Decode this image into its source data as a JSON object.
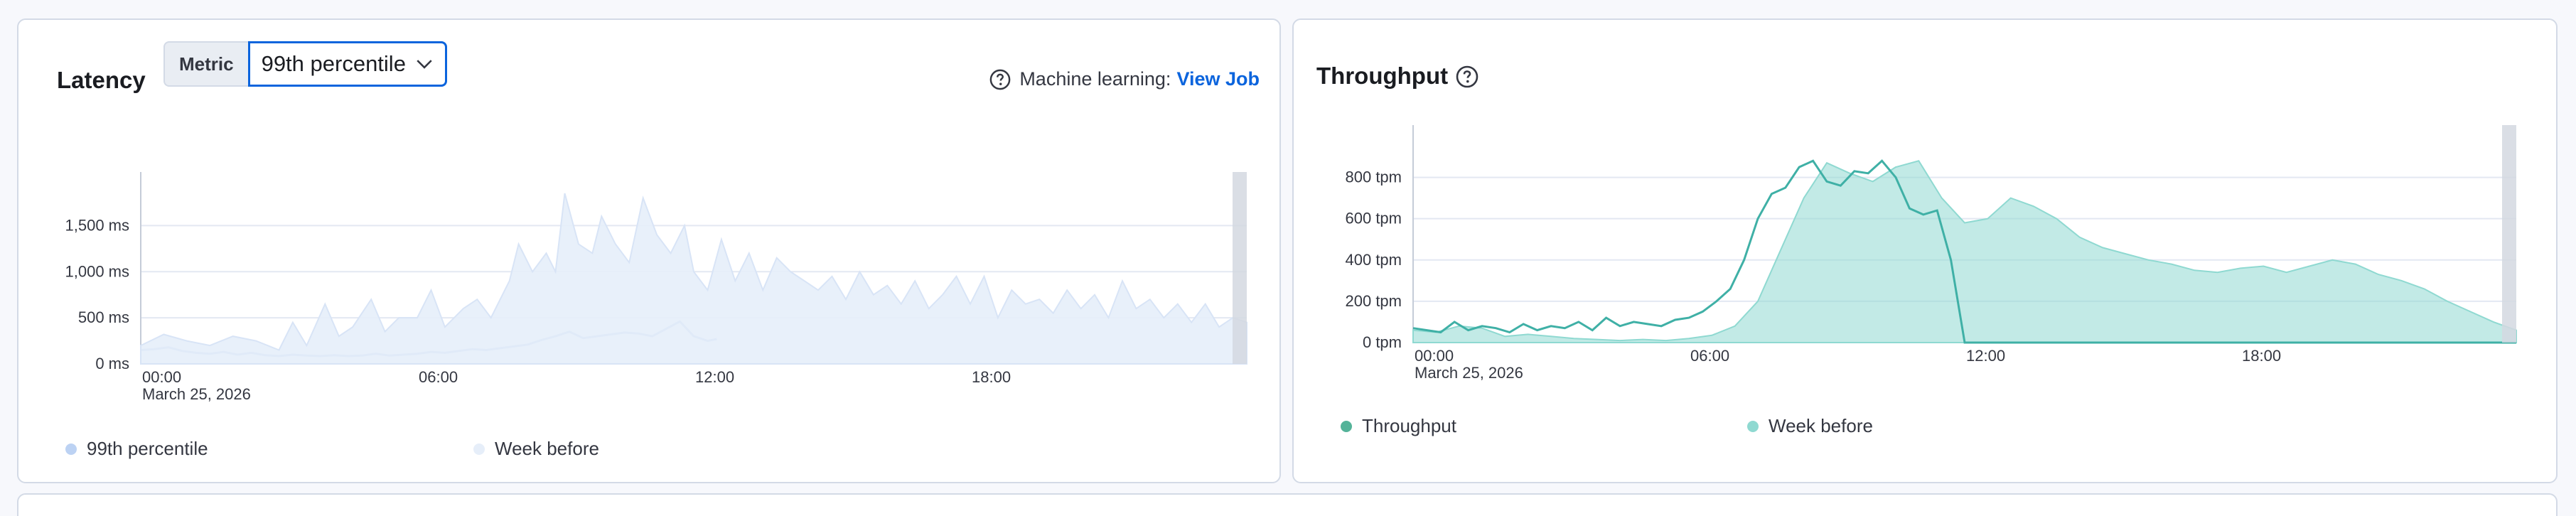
{
  "latency": {
    "title": "Latency",
    "metric_label": "Metric",
    "metric_value": "99th percentile",
    "ml_label": "Machine learning:",
    "ml_link": "View Job",
    "legend": [
      {
        "label": "99th percentile",
        "color": "#bcd2f3"
      },
      {
        "label": "Week before",
        "color": "#e6eef9"
      }
    ]
  },
  "throughput": {
    "title": "Throughput",
    "legend": [
      {
        "label": "Throughput",
        "color": "#54b399"
      },
      {
        "label": "Week before",
        "color": "#8fd9d1"
      }
    ]
  },
  "chart_data": [
    {
      "type": "area",
      "title": "",
      "x_date": "March 25, 2026",
      "x_ticks": [
        "00:00",
        "06:00",
        "12:00",
        "18:00"
      ],
      "x_range_hours": [
        0,
        24
      ],
      "y_ticks": [
        "0 ms",
        "500 ms",
        "1,000 ms",
        "1,500 ms"
      ],
      "y_tick_values": [
        0,
        500,
        1000,
        1500
      ],
      "ylim": [
        0,
        1850
      ],
      "grid": true,
      "legend_position": "bottom-left",
      "series": [
        {
          "name": "99th percentile",
          "color": "#a8c4ec",
          "style": "line",
          "x": [
            0,
            0.3,
            0.6,
            0.9,
            1.2,
            1.5,
            1.8,
            2.1,
            2.4,
            2.7,
            3.0,
            3.3,
            3.6,
            3.9,
            4.2,
            4.5,
            4.8,
            5.1,
            5.4,
            5.7,
            6.0,
            6.3,
            6.6,
            6.9,
            7.2,
            7.5,
            7.8,
            8.1,
            8.4,
            8.7,
            9.0,
            9.3,
            9.6,
            9.9,
            10.2,
            10.5,
            10.8,
            11.1,
            11.4,
            11.7,
            12.0,
            12.3,
            12.5
          ],
          "y": [
            150,
            160,
            180,
            140,
            120,
            110,
            130,
            100,
            120,
            95,
            85,
            100,
            90,
            85,
            95,
            85,
            90,
            110,
            90,
            100,
            110,
            130,
            120,
            140,
            160,
            150,
            170,
            190,
            210,
            260,
            300,
            350,
            280,
            300,
            320,
            340,
            330,
            300,
            380,
            460,
            300,
            250,
            270
          ]
        },
        {
          "name": "Week before",
          "color": "#e6eef9",
          "style": "area",
          "x": [
            0,
            0.5,
            1,
            1.5,
            2,
            2.5,
            3,
            3.3,
            3.6,
            4,
            4.3,
            4.6,
            5,
            5.3,
            5.6,
            6,
            6.3,
            6.6,
            7,
            7.3,
            7.6,
            8,
            8.2,
            8.5,
            8.8,
            9.0,
            9.2,
            9.5,
            9.8,
            10.0,
            10.3,
            10.6,
            10.9,
            11.2,
            11.5,
            11.8,
            12.0,
            12.3,
            12.6,
            12.9,
            13.2,
            13.5,
            13.8,
            14.1,
            14.4,
            14.7,
            15.0,
            15.3,
            15.6,
            15.9,
            16.2,
            16.5,
            16.8,
            17.1,
            17.4,
            17.7,
            18.0,
            18.3,
            18.6,
            18.9,
            19.2,
            19.5,
            19.8,
            20.1,
            20.4,
            20.7,
            21.0,
            21.3,
            21.6,
            21.9,
            22.2,
            22.5,
            22.8,
            23.1,
            23.4,
            23.7,
            24.0
          ],
          "y": [
            200,
            320,
            250,
            200,
            300,
            250,
            150,
            450,
            200,
            650,
            300,
            400,
            700,
            350,
            500,
            500,
            800,
            400,
            600,
            700,
            500,
            900,
            1300,
            1000,
            1200,
            1000,
            1850,
            1300,
            1200,
            1600,
            1300,
            1100,
            1800,
            1400,
            1200,
            1500,
            1000,
            800,
            1350,
            900,
            1200,
            800,
            1150,
            1000,
            900,
            800,
            950,
            700,
            1000,
            750,
            850,
            650,
            900,
            600,
            750,
            950,
            650,
            950,
            500,
            800,
            650,
            700,
            550,
            800,
            600,
            750,
            500,
            900,
            600,
            700,
            500,
            650,
            450,
            650,
            400,
            500,
            450
          ]
        }
      ]
    },
    {
      "type": "area",
      "title": "",
      "x_date": "March 25, 2026",
      "x_ticks": [
        "00:00",
        "06:00",
        "12:00",
        "18:00"
      ],
      "x_range_hours": [
        0,
        24
      ],
      "y_ticks": [
        "0 tpm",
        "200 tpm",
        "400 tpm",
        "600 tpm",
        "800 tpm"
      ],
      "y_tick_values": [
        0,
        200,
        400,
        600,
        800
      ],
      "ylim": [
        0,
        950
      ],
      "grid": true,
      "legend_position": "bottom-left",
      "series": [
        {
          "name": "Week before",
          "color": "#8fd9d1",
          "style": "area",
          "x": [
            0,
            0.5,
            1,
            1.5,
            2,
            2.5,
            3,
            3.5,
            4,
            4.5,
            5,
            5.5,
            6,
            6.5,
            7,
            7.5,
            8,
            8.5,
            9,
            9.5,
            10,
            10.5,
            11,
            11.5,
            12,
            12.5,
            13,
            13.5,
            14,
            14.5,
            15,
            15.5,
            16,
            16.5,
            17,
            17.5,
            18,
            18.5,
            19,
            19.5,
            20,
            20.5,
            21,
            21.5,
            22,
            22.5,
            23,
            23.5,
            24
          ],
          "y": [
            60,
            50,
            80,
            70,
            30,
            40,
            30,
            20,
            15,
            10,
            15,
            10,
            20,
            35,
            80,
            200,
            450,
            700,
            870,
            820,
            780,
            850,
            880,
            700,
            580,
            600,
            700,
            660,
            600,
            510,
            460,
            430,
            400,
            380,
            350,
            340,
            360,
            370,
            340,
            370,
            400,
            380,
            330,
            300,
            260,
            200,
            150,
            100,
            60
          ]
        },
        {
          "name": "Throughput",
          "color": "#3fb0a6",
          "style": "line",
          "x": [
            0,
            0.3,
            0.6,
            0.9,
            1.2,
            1.5,
            1.8,
            2.1,
            2.4,
            2.7,
            3.0,
            3.3,
            3.6,
            3.9,
            4.2,
            4.5,
            4.8,
            5.1,
            5.4,
            5.7,
            6.0,
            6.3,
            6.6,
            6.9,
            7.2,
            7.5,
            7.8,
            8.1,
            8.4,
            8.7,
            9.0,
            9.3,
            9.6,
            9.9,
            10.2,
            10.5,
            10.8,
            11.1,
            11.4,
            11.7,
            12.0,
            12.05,
            24.0
          ],
          "y": [
            70,
            60,
            50,
            100,
            60,
            80,
            70,
            50,
            90,
            60,
            80,
            70,
            100,
            60,
            120,
            80,
            100,
            90,
            80,
            110,
            120,
            150,
            200,
            260,
            400,
            600,
            720,
            750,
            850,
            880,
            780,
            760,
            830,
            820,
            880,
            800,
            650,
            620,
            640,
            400,
            0,
            0,
            0
          ]
        }
      ]
    }
  ]
}
